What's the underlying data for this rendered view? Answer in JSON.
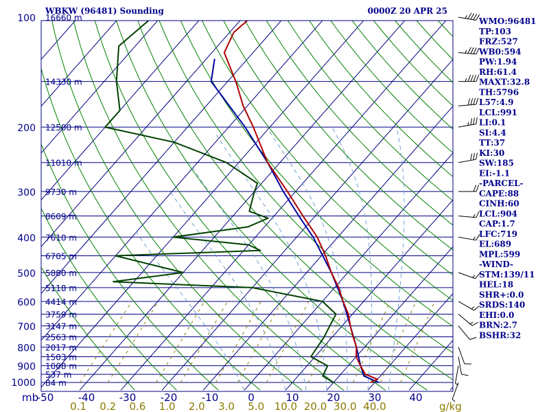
{
  "chart_data": {
    "type": "skew-t",
    "title": "WBKW (96481) Sounding",
    "time": "0000Z 20 APR 25",
    "pressure_levels": [
      100,
      200,
      300,
      400,
      500,
      600,
      700,
      800,
      900,
      1000
    ],
    "pressure_unit": "mb",
    "temperature_ticks": [
      "-50",
      "-40",
      "-30",
      "-20",
      "-10",
      "0",
      "10",
      "20",
      "30",
      "40"
    ],
    "mixing_ratio_ticks": [
      "0.1",
      "0.2",
      "0.6",
      "1.0",
      "2.0",
      "3.0",
      "5.0",
      "10.0",
      "20.0",
      "30.0",
      "40.0"
    ],
    "mixing_ratio_unit": "g/kg",
    "heights": [
      {
        "p": 100,
        "label": "16660 m"
      },
      {
        "p": 150,
        "label": "14330 m"
      },
      {
        "p": 200,
        "label": "12500 m"
      },
      {
        "p": 250,
        "label": "11010 m"
      },
      {
        "p": 300,
        "label": "9730 m"
      },
      {
        "p": 350,
        "label": "8609 m"
      },
      {
        "p": 400,
        "label": "7610 m"
      },
      {
        "p": 450,
        "label": "6705 m"
      },
      {
        "p": 500,
        "label": "5880 m"
      },
      {
        "p": 550,
        "label": "5118 m"
      },
      {
        "p": 600,
        "label": "4414 m"
      },
      {
        "p": 650,
        "label": "3759 m"
      },
      {
        "p": 700,
        "label": "3147 m"
      },
      {
        "p": 750,
        "label": "2563 m"
      },
      {
        "p": 800,
        "label": "2017 m"
      },
      {
        "p": 850,
        "label": "1503 m"
      },
      {
        "p": 900,
        "label": "1008 m"
      },
      {
        "p": 950,
        "label": "537 m"
      },
      {
        "p": 1000,
        "label": "84 m"
      }
    ],
    "temperature_profile": [
      {
        "p": 100,
        "t": -78
      },
      {
        "p": 110,
        "t": -79
      },
      {
        "p": 125,
        "t": -77
      },
      {
        "p": 150,
        "t": -68
      },
      {
        "p": 175,
        "t": -61
      },
      {
        "p": 200,
        "t": -54
      },
      {
        "p": 250,
        "t": -43
      },
      {
        "p": 300,
        "t": -32
      },
      {
        "p": 350,
        "t": -23
      },
      {
        "p": 400,
        "t": -15
      },
      {
        "p": 450,
        "t": -9
      },
      {
        "p": 500,
        "t": -4
      },
      {
        "p": 550,
        "t": 1
      },
      {
        "p": 600,
        "t": 5
      },
      {
        "p": 650,
        "t": 9
      },
      {
        "p": 700,
        "t": 12
      },
      {
        "p": 750,
        "t": 15
      },
      {
        "p": 800,
        "t": 18
      },
      {
        "p": 850,
        "t": 20
      },
      {
        "p": 900,
        "t": 23
      },
      {
        "p": 950,
        "t": 26
      },
      {
        "p": 980,
        "t": 30
      },
      {
        "p": 1000,
        "t": 29
      }
    ],
    "dewpoint_profile": [
      {
        "p": 100,
        "t": -102
      },
      {
        "p": 120,
        "t": -104
      },
      {
        "p": 150,
        "t": -97
      },
      {
        "p": 180,
        "t": -90
      },
      {
        "p": 200,
        "t": -90
      },
      {
        "p": 220,
        "t": -70
      },
      {
        "p": 250,
        "t": -53
      },
      {
        "p": 285,
        "t": -41
      },
      {
        "p": 300,
        "t": -40
      },
      {
        "p": 340,
        "t": -37
      },
      {
        "p": 355,
        "t": -31
      },
      {
        "p": 375,
        "t": -34
      },
      {
        "p": 400,
        "t": -50
      },
      {
        "p": 420,
        "t": -30
      },
      {
        "p": 435,
        "t": -26
      },
      {
        "p": 450,
        "t": -60
      },
      {
        "p": 500,
        "t": -40
      },
      {
        "p": 530,
        "t": -55
      },
      {
        "p": 550,
        "t": -20
      },
      {
        "p": 600,
        "t": 0
      },
      {
        "p": 650,
        "t": 6
      },
      {
        "p": 700,
        "t": 7
      },
      {
        "p": 750,
        "t": 8
      },
      {
        "p": 850,
        "t": 9
      },
      {
        "p": 900,
        "t": 15
      },
      {
        "p": 960,
        "t": 16
      },
      {
        "p": 1000,
        "t": 20
      }
    ],
    "parcel_profile": [
      {
        "p": 130,
        "t": -78
      },
      {
        "p": 150,
        "t": -74
      },
      {
        "p": 200,
        "t": -56
      },
      {
        "p": 250,
        "t": -43
      },
      {
        "p": 300,
        "t": -33
      },
      {
        "p": 350,
        "t": -24
      },
      {
        "p": 400,
        "t": -16
      },
      {
        "p": 500,
        "t": -4
      },
      {
        "p": 600,
        "t": 5
      },
      {
        "p": 700,
        "t": 12
      },
      {
        "p": 800,
        "t": 18
      },
      {
        "p": 900,
        "t": 23
      },
      {
        "p": 960,
        "t": 26
      },
      {
        "p": 1000,
        "t": 31
      }
    ],
    "wind_barbs": [
      {
        "p": 100,
        "dir": 100,
        "spd": 45
      },
      {
        "p": 125,
        "dir": 95,
        "spd": 45
      },
      {
        "p": 150,
        "dir": 90,
        "spd": 45
      },
      {
        "p": 175,
        "dir": 85,
        "spd": 40
      },
      {
        "p": 200,
        "dir": 80,
        "spd": 35
      },
      {
        "p": 250,
        "dir": 80,
        "spd": 30
      },
      {
        "p": 300,
        "dir": 90,
        "spd": 20
      },
      {
        "p": 350,
        "dir": 95,
        "spd": 15
      },
      {
        "p": 400,
        "dir": 100,
        "spd": 15
      },
      {
        "p": 500,
        "dir": 110,
        "spd": 15
      },
      {
        "p": 600,
        "dir": 120,
        "spd": 15
      },
      {
        "p": 650,
        "dir": 130,
        "spd": 15
      },
      {
        "p": 700,
        "dir": 140,
        "spd": 10
      },
      {
        "p": 800,
        "dir": 160,
        "spd": 10
      },
      {
        "p": 850,
        "dir": 170,
        "spd": 10
      },
      {
        "p": 900,
        "dir": 190,
        "spd": 5
      },
      {
        "p": 1000,
        "dir": 200,
        "spd": 5
      }
    ],
    "colors": {
      "isobar": "#000080",
      "isotherm": "#000080",
      "dry_adiabat": "#008000",
      "moist_adiabat": "#6fa0d0",
      "mixing_ratio": "#8b7a00",
      "temperature": "#b00000",
      "dewpoint": "#004000",
      "parcel": "#0000a0",
      "text": "#00008b",
      "mixing_ratio_text": "#8b7a00"
    },
    "indices": [
      "WMO:96481",
      "TP:103",
      "FRZ:527",
      "WB0:594",
      "PW:1.94",
      "RH:61.4",
      "MAXT:32.8",
      "TH:5796",
      "L57:4.9",
      "LCL:991",
      "LI:0.1",
      "SI:4.4",
      "TT:37",
      "KI:30",
      "SW:185",
      "EI:-1.1",
      "-PARCEL-",
      "CAPE:88",
      "CINH:60",
      "LCL:904",
      "CAP:1.7",
      "LFC:719",
      "EL:689",
      "MPL:599",
      "-WIND-",
      "STM:139/11",
      "HEL:18",
      "SHR+:0.0",
      "SRDS:140",
      "EHI:0.0",
      "BRN:2.7",
      "BSHR:32"
    ]
  }
}
